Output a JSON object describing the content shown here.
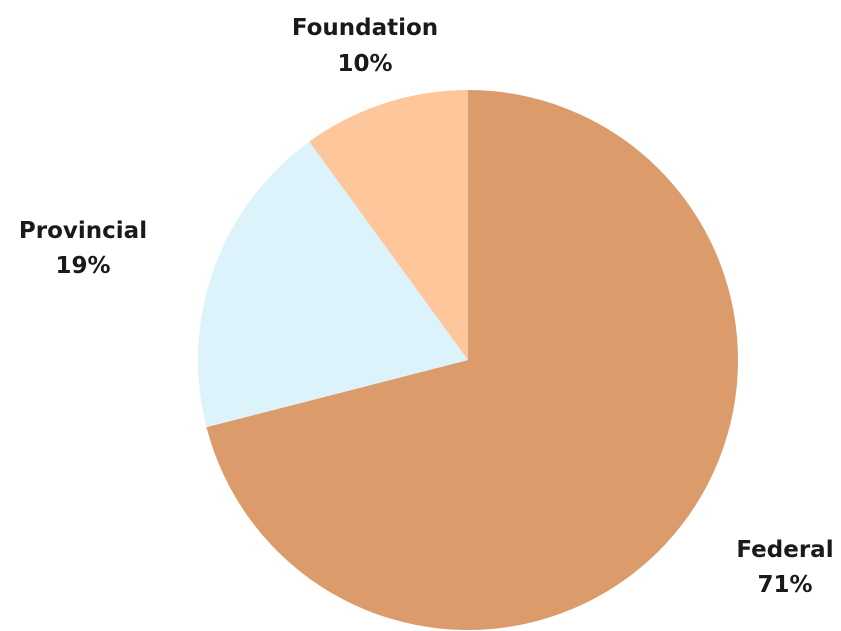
{
  "chart_data": {
    "type": "pie",
    "start_angle_deg": 0,
    "direction": "clockwise",
    "legend": "none",
    "slices": [
      {
        "label": "Federal",
        "value": 71,
        "value_label": "71%",
        "color": "#dc9b6a"
      },
      {
        "label": "Provincial",
        "value": 19,
        "value_label": "19%",
        "color": "#ddf3fb"
      },
      {
        "label": "Foundation",
        "value": 10,
        "value_label": "10%",
        "color": "#fdc69b"
      }
    ]
  }
}
